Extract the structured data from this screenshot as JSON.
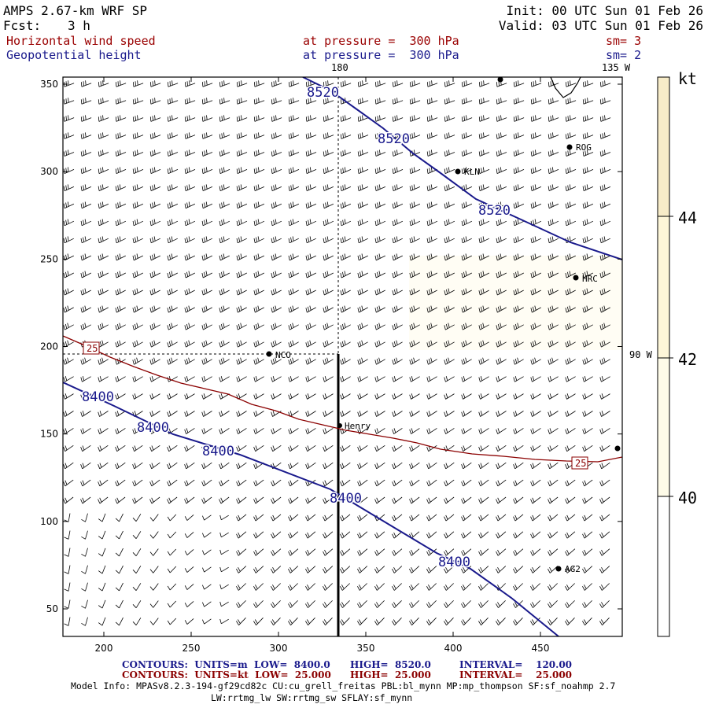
{
  "header": {
    "model": "AMPS 2.67-km WRF SP",
    "fcst_label": "Fcst:",
    "fcst_value": "3 h",
    "init": "Init: 00 UTC Sun 01 Feb 26",
    "valid": "Valid: 03 UTC Sun 01 Feb 26"
  },
  "fields": [
    {
      "name": "Horizontal wind speed",
      "level": "at pressure =  300 hPa",
      "sm": "sm= 3"
    },
    {
      "name": "Geopotential height",
      "level": "at pressure =  300 hPa",
      "sm": "sm= 2"
    }
  ],
  "map": {
    "lon_labels": {
      "top_180": "180",
      "top_135w": "135 W",
      "right_90w": "90 W"
    },
    "y_ticks": [
      "350",
      "300",
      "250",
      "200",
      "150",
      "100",
      "50"
    ],
    "x_ticks": [
      "200",
      "250",
      "300",
      "350",
      "400",
      "450"
    ],
    "stations": [
      "ROG",
      "KLN",
      "HRC",
      "NCO",
      "Henry",
      "AG2"
    ],
    "height_contour_labels": [
      "8520",
      "8520",
      "8520",
      "8400",
      "8400",
      "8400",
      "8400",
      "8400"
    ],
    "speed_contour_labels": [
      "25",
      "25"
    ]
  },
  "colorbar": {
    "unit": "kt",
    "labels": [
      "44",
      "42",
      "40"
    ],
    "colors": {
      "low": "#fffff5",
      "mid": "#fdf6d8",
      "high": "#f7ecc8"
    }
  },
  "colors": {
    "height_contour": "#1a1a8c",
    "speed_contour": "#8b0000",
    "barb": "#000000"
  },
  "footer": {
    "line1": {
      "a": "CONTOURS:  UNITS=m  LOW=  8400.0",
      "b": "HIGH=  8520.0",
      "c": "INTERVAL=    120.00"
    },
    "line2": {
      "a": "CONTOURS:  UNITS=kt  LOW=  25.000",
      "b": "HIGH=  25.000",
      "c": "INTERVAL=    25.000"
    },
    "model_info": "Model Info: MPASv8.2.3-194-gf29cd82c CU:cu_grell_freitas PBL:bl_mynn MP:mp_thompson SF:sf_noahmp 2.7",
    "model_info2": "LW:rrtmg_lw SW:rrtmg_sw SFLAY:sf_mynn"
  }
}
